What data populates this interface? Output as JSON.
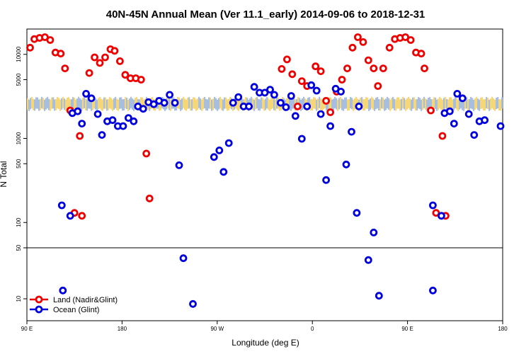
{
  "chart_data": {
    "type": "scatter",
    "title": "40N-45N Annual Mean (Ver 11.1_early)   2014-09-06 to 2018-12-31",
    "xlabel": "Longitude (deg E)",
    "ylabel": "N Total",
    "x_ticks": [
      {
        "value": 90,
        "label": "90 E"
      },
      {
        "value": 180,
        "label": "180"
      },
      {
        "value": 270,
        "label": "90 W"
      },
      {
        "value": 360,
        "label": "0"
      },
      {
        "value": 450,
        "label": "90 E"
      },
      {
        "value": 540,
        "label": "180"
      }
    ],
    "xlim": [
      90,
      540
    ],
    "y_scale": "log",
    "upper_ylim": [
      50,
      20000
    ],
    "upper_y_ticks": [
      100,
      500,
      1000,
      5000,
      10000
    ],
    "lower_ylim": [
      5,
      50
    ],
    "lower_y_ticks": [
      10,
      50
    ],
    "series": [
      {
        "name": "Land (Nadir&Glint)",
        "color": "#ee0000",
        "points": [
          [
            93,
            12000
          ],
          [
            97,
            15200
          ],
          [
            102,
            15700
          ],
          [
            107,
            16000
          ],
          [
            112,
            14800
          ],
          [
            117,
            10500
          ],
          [
            122,
            10200
          ],
          [
            126,
            6800
          ],
          [
            131,
            2150
          ],
          [
            135,
            130
          ],
          [
            140,
            1070
          ],
          [
            142,
            120
          ],
          [
            149,
            6000
          ],
          [
            154,
            9200
          ],
          [
            159,
            7900
          ],
          [
            164,
            9200
          ],
          [
            169,
            11500
          ],
          [
            173,
            11000
          ],
          [
            178,
            8300
          ],
          [
            183,
            5700
          ],
          [
            188,
            5200
          ],
          [
            193,
            5200
          ],
          [
            198,
            5000
          ],
          [
            203,
            660
          ],
          [
            206,
            193
          ],
          [
            331,
            6700
          ],
          [
            336,
            8700
          ],
          [
            341,
            5800
          ],
          [
            346,
            2400
          ],
          [
            350,
            4800
          ],
          [
            355,
            4200
          ],
          [
            363,
            7200
          ],
          [
            368,
            6300
          ],
          [
            373,
            2800
          ],
          [
            377,
            2050
          ],
          [
            383,
            3600
          ],
          [
            388,
            5000
          ],
          [
            393,
            6800
          ],
          [
            398,
            12000
          ],
          [
            403,
            16000
          ],
          [
            408,
            14000
          ],
          [
            413,
            8500
          ],
          [
            418,
            6800
          ],
          [
            422,
            4200
          ],
          [
            427,
            6800
          ],
          [
            433,
            12000
          ],
          [
            438,
            15200
          ],
          [
            443,
            15700
          ],
          [
            448,
            16000
          ],
          [
            453,
            14800
          ],
          [
            458,
            10500
          ],
          [
            463,
            10200
          ],
          [
            466,
            6800
          ],
          [
            472,
            2150
          ],
          [
            477,
            130
          ],
          [
            483,
            1070
          ],
          [
            486,
            120
          ]
        ]
      },
      {
        "name": "Ocean (Glint)",
        "color": "#0000dd",
        "points": [
          [
            123,
            160
          ],
          [
            124,
            13
          ],
          [
            131,
            120
          ],
          [
            133,
            2000
          ],
          [
            138,
            2100
          ],
          [
            142,
            1500
          ],
          [
            146,
            3400
          ],
          [
            151,
            3000
          ],
          [
            157,
            1950
          ],
          [
            161,
            1100
          ],
          [
            166,
            1600
          ],
          [
            171,
            1650
          ],
          [
            176,
            1400
          ],
          [
            181,
            1400
          ],
          [
            186,
            1750
          ],
          [
            191,
            1600
          ],
          [
            195,
            2400
          ],
          [
            200,
            2250
          ],
          [
            205,
            2700
          ],
          [
            210,
            2550
          ],
          [
            215,
            2800
          ],
          [
            220,
            2650
          ],
          [
            225,
            3300
          ],
          [
            230,
            2650
          ],
          [
            234,
            480
          ],
          [
            238,
            36
          ],
          [
            247,
            8.5
          ],
          [
            267,
            600
          ],
          [
            272,
            720
          ],
          [
            276,
            400
          ],
          [
            281,
            880
          ],
          [
            285,
            2650
          ],
          [
            290,
            3100
          ],
          [
            295,
            2400
          ],
          [
            300,
            2400
          ],
          [
            305,
            4100
          ],
          [
            310,
            3500
          ],
          [
            315,
            3500
          ],
          [
            320,
            3800
          ],
          [
            324,
            3300
          ],
          [
            330,
            2650
          ],
          [
            335,
            2350
          ],
          [
            340,
            3200
          ],
          [
            344,
            1850
          ],
          [
            350,
            990
          ],
          [
            355,
            2400
          ],
          [
            359,
            4300
          ],
          [
            364,
            3700
          ],
          [
            368,
            1950
          ],
          [
            373,
            320
          ],
          [
            377,
            1400
          ],
          [
            382,
            3900
          ],
          [
            387,
            3600
          ],
          [
            392,
            490
          ],
          [
            397,
            1200
          ],
          [
            402,
            130
          ],
          [
            404,
            2400
          ],
          [
            413,
            34
          ],
          [
            418,
            76
          ],
          [
            423,
            11
          ],
          [
            474,
            160
          ],
          [
            474,
            13
          ],
          [
            482,
            120
          ],
          [
            485,
            2000
          ],
          [
            490,
            2100
          ],
          [
            494,
            1500
          ],
          [
            497,
            3400
          ],
          [
            502,
            3000
          ],
          [
            508,
            1950
          ],
          [
            513,
            1100
          ],
          [
            518,
            1600
          ],
          [
            523,
            1650
          ],
          [
            538,
            1400
          ]
        ]
      }
    ],
    "band": {
      "y_low": 2200,
      "y_high": 3000,
      "colors": [
        "#a8bedf",
        "#f5d77a"
      ],
      "x_range": [
        90,
        540
      ]
    },
    "legend_position": "bottom-left"
  }
}
